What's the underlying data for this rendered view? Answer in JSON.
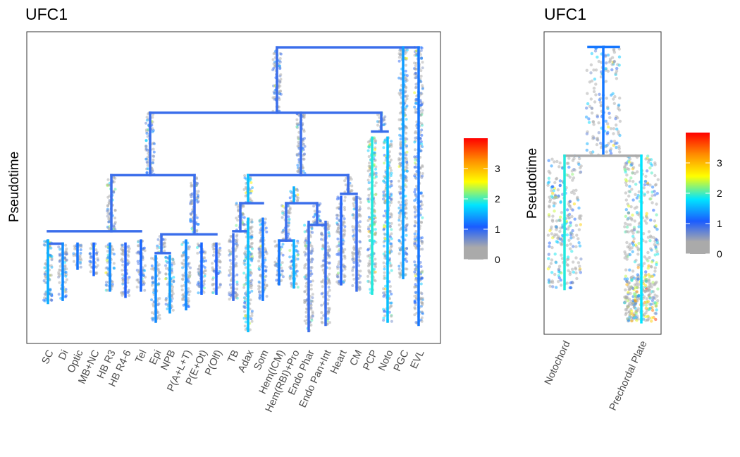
{
  "colors": {
    "gradient": [
      "#aaaaaa",
      "#1a5cff",
      "#00e5ff",
      "#ffff00",
      "#ff8c00",
      "#ff0000"
    ],
    "point_base": "#a9a9a9",
    "panel_border": "#333333"
  },
  "chart_data": [
    {
      "type": "scatter",
      "subtype": "branching-tree-with-jitter-points",
      "title": "UFC1",
      "ylabel": "Pseudotime",
      "xlabel": "",
      "y_ticks_shown": false,
      "grid": false,
      "categories": [
        "SC",
        "Di",
        "Optic",
        "MB+NC",
        "HB R3",
        "HB R4-6",
        "Tel",
        "Epi",
        "NPB",
        "P(A+L+T)",
        "P(E+Ot)",
        "P(Olf)",
        "TB",
        "Adax",
        "Som",
        "Hem(ICM)",
        "Hem(RBI)+Pro",
        "Endo Phar",
        "Endo Pan+Int",
        "Heart",
        "CM",
        "PCP",
        "Noto",
        "PGC",
        "EVL"
      ],
      "tip_min_pseudotime": [
        0.13,
        0.14,
        0.24,
        0.22,
        0.17,
        0.15,
        0.17,
        0.07,
        0.1,
        0.11,
        0.16,
        0.16,
        0.14,
        0.04,
        0.14,
        0.19,
        0.18,
        0.04,
        0.06,
        0.19,
        0.17,
        0.16,
        0.07,
        0.21,
        0.06
      ],
      "mean_expression": [
        1.2,
        1.0,
        0.9,
        0.8,
        1.0,
        0.7,
        0.8,
        1.0,
        1.1,
        1.0,
        0.8,
        0.7,
        0.6,
        1.3,
        0.9,
        0.9,
        1.2,
        0.6,
        0.6,
        0.7,
        0.6,
        1.6,
        1.3,
        1.1,
        0.9
      ],
      "colorbar": {
        "ticks": [
          "0",
          "1",
          "2",
          "3"
        ],
        "range": [
          0,
          4
        ]
      }
    },
    {
      "type": "scatter",
      "subtype": "branching-tree-with-jitter-points",
      "title": "UFC1",
      "ylabel": "Pseudotime",
      "xlabel": "",
      "y_ticks_shown": false,
      "grid": false,
      "categories": [
        "Notochord",
        "Prechordal Plate"
      ],
      "tip_min_pseudotime": [
        0.15,
        0.04
      ],
      "mean_expression": [
        1.3,
        1.7
      ],
      "colorbar": {
        "ticks": [
          "0",
          "1",
          "2",
          "3"
        ],
        "range": [
          0,
          4
        ]
      }
    }
  ]
}
